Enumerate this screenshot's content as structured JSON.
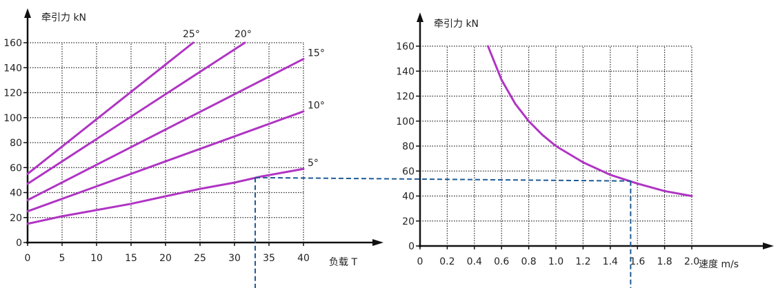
{
  "chart_data": [
    {
      "type": "line",
      "ylabel": "牵引力 kN",
      "xlabel": "负载 T",
      "xlim": [
        0,
        40
      ],
      "ylim": [
        0,
        160
      ],
      "xticks": [
        "0",
        "5",
        "10",
        "15",
        "20",
        "25",
        "30",
        "35",
        "40"
      ],
      "yticks": [
        "0",
        "20",
        "40",
        "60",
        "80",
        "100",
        "120",
        "140",
        "160"
      ],
      "grid": true,
      "grid_style": "dotted",
      "series": [
        {
          "name": "25°",
          "x": [
            0,
            24
          ],
          "y": [
            55,
            160
          ]
        },
        {
          "name": "20°",
          "x": [
            0,
            31.5
          ],
          "y": [
            47,
            160
          ]
        },
        {
          "name": "15°",
          "x": [
            0,
            40
          ],
          "y": [
            34,
            147
          ]
        },
        {
          "name": "10°",
          "x": [
            0,
            40
          ],
          "y": [
            25,
            105
          ]
        },
        {
          "name": "5°",
          "x": [
            0,
            5,
            10,
            15,
            20,
            25,
            30,
            34,
            40
          ],
          "y": [
            15,
            21,
            26,
            31,
            37,
            43,
            48,
            53,
            59
          ]
        }
      ],
      "annotation": {
        "type": "dashed-guide",
        "x": 33,
        "y": 52
      }
    },
    {
      "type": "line",
      "ylabel": "牵引力 kN",
      "xlabel": "速度 m/s",
      "xlim": [
        0,
        2.0
      ],
      "ylim": [
        0,
        160
      ],
      "xticks": [
        "0",
        "0.2",
        "0.4",
        "0.6",
        "0.8",
        "1.0",
        "1.2",
        "1.4",
        "1.6",
        "1.8",
        "2.0"
      ],
      "yticks": [
        "0",
        "20",
        "40",
        "60",
        "80",
        "100",
        "120",
        "140",
        "160"
      ],
      "grid": true,
      "grid_style": "dotted",
      "series": [
        {
          "x": [
            0.5,
            0.6,
            0.7,
            0.8,
            0.9,
            1.0,
            1.2,
            1.4,
            1.6,
            1.8,
            2.0
          ],
          "y": [
            160,
            133,
            114,
            100,
            89,
            80,
            67,
            57,
            50,
            44,
            40
          ]
        }
      ],
      "annotation": {
        "type": "dashed-guide",
        "x": 1.55,
        "y": 52
      }
    }
  ],
  "colors": {
    "curve": "#b034c4",
    "guide": "#1d5a96",
    "grid": "#222222",
    "axis": "#111111"
  }
}
